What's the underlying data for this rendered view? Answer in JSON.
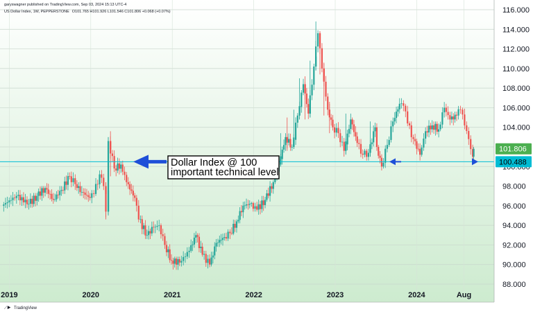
{
  "header": {
    "published": "garyswagner published on TradingView.com, Sep 03, 2024 15:13 UTC-4",
    "symbol": "US Dollar Index, 1W, PEPPERSTONE",
    "ohlc": "O101.765 H101.926 L101.546 C101.806 +0.068 (+0.07%)"
  },
  "footer": {
    "brand": "TradingView"
  },
  "annotation": {
    "line1": "Dollar Index @ 100",
    "line2": "important technical level"
  },
  "colors": {
    "up": "#26a69a",
    "down": "#ef5350",
    "support_line": "#00bcd4",
    "arrow": "#1e4fd8",
    "price_badge": "#4caf50",
    "level_badge": "#00bcd4",
    "gradient_top": "#ffffff",
    "gradient_bottom": "#cdebcf"
  },
  "chart_data": {
    "type": "candlestick",
    "title": "",
    "xlabel": "",
    "ylabel": "",
    "ylim": [
      88,
      116
    ],
    "yticks": [
      88,
      90,
      92,
      94,
      96,
      98,
      100,
      102,
      104,
      106,
      108,
      110,
      112,
      114,
      116
    ],
    "ytick_labels": [
      "88.000",
      "90.000",
      "92.000",
      "94.000",
      "96.000",
      "98.000",
      "100.000",
      "102.000",
      "104.000",
      "106.000",
      "108.000",
      "110.000",
      "112.000",
      "114.000",
      "116.000"
    ],
    "xlim": [
      2018.92,
      2024.78
    ],
    "xticks": [
      2019.0,
      2020.0,
      2021.0,
      2022.0,
      2023.0,
      2024.0,
      2024.58
    ],
    "xtick_labels": [
      "2019",
      "2020",
      "2021",
      "2022",
      "2023",
      "2024",
      "Aug"
    ],
    "grid": true,
    "current_price": 101.806,
    "current_price_label": "101.806",
    "support_level": 100.488,
    "support_level_label": "100.488",
    "candles": [
      [
        2018.92,
        96.0,
        97.4,
        95.2,
        97.0
      ],
      [
        2019.1,
        97.0,
        97.6,
        95.6,
        96.2
      ],
      [
        2019.25,
        96.2,
        97.3,
        95.8,
        97.0
      ],
      [
        2019.35,
        97.0,
        98.0,
        96.4,
        97.8
      ],
      [
        2019.45,
        97.8,
        98.3,
        96.2,
        96.6
      ],
      [
        2019.55,
        96.6,
        98.0,
        96.4,
        97.6
      ],
      [
        2019.65,
        97.6,
        99.4,
        97.2,
        99.0
      ],
      [
        2019.75,
        99.0,
        99.6,
        97.6,
        98.2
      ],
      [
        2019.82,
        98.2,
        98.6,
        97.0,
        97.4
      ],
      [
        2019.9,
        97.4,
        98.4,
        96.4,
        96.8
      ],
      [
        2020.0,
        96.8,
        97.6,
        96.2,
        97.2
      ],
      [
        2020.05,
        97.2,
        99.6,
        97.0,
        99.2
      ],
      [
        2020.12,
        99.2,
        99.8,
        97.6,
        98.0
      ],
      [
        2020.17,
        98.0,
        98.4,
        94.6,
        95.4
      ],
      [
        2020.2,
        95.4,
        103.0,
        95.0,
        102.6
      ],
      [
        2020.23,
        102.6,
        103.6,
        99.0,
        99.8
      ],
      [
        2020.3,
        99.8,
        101.0,
        99.0,
        100.2
      ],
      [
        2020.38,
        100.2,
        100.6,
        98.0,
        98.4
      ],
      [
        2020.45,
        98.4,
        99.0,
        96.4,
        96.8
      ],
      [
        2020.55,
        96.8,
        97.2,
        94.2,
        94.6
      ],
      [
        2020.6,
        94.6,
        95.0,
        92.6,
        93.0
      ],
      [
        2020.7,
        93.0,
        94.4,
        92.4,
        93.8
      ],
      [
        2020.78,
        93.8,
        94.6,
        93.0,
        94.0
      ],
      [
        2020.85,
        94.0,
        94.2,
        91.6,
        92.0
      ],
      [
        2020.92,
        92.0,
        92.4,
        90.0,
        90.4
      ],
      [
        2021.0,
        90.4,
        90.8,
        89.4,
        90.2
      ],
      [
        2021.1,
        90.2,
        91.8,
        89.8,
        91.4
      ],
      [
        2021.22,
        91.4,
        93.4,
        91.2,
        93.0
      ],
      [
        2021.3,
        93.0,
        93.2,
        90.8,
        91.0
      ],
      [
        2021.38,
        91.0,
        91.4,
        89.6,
        90.0
      ],
      [
        2021.47,
        90.0,
        92.6,
        89.8,
        92.2
      ],
      [
        2021.55,
        92.2,
        93.2,
        91.8,
        92.8
      ],
      [
        2021.65,
        92.8,
        93.6,
        92.4,
        93.2
      ],
      [
        2021.72,
        93.2,
        94.6,
        93.0,
        94.4
      ],
      [
        2021.8,
        94.4,
        96.4,
        94.2,
        96.0
      ],
      [
        2021.88,
        96.0,
        96.8,
        95.6,
        96.2
      ],
      [
        2021.96,
        96.2,
        96.4,
        95.4,
        95.6
      ],
      [
        2022.05,
        95.6,
        97.0,
        94.6,
        96.6
      ],
      [
        2022.15,
        96.6,
        98.6,
        96.4,
        98.4
      ],
      [
        2022.25,
        98.4,
        100.6,
        98.2,
        100.2
      ],
      [
        2022.32,
        100.2,
        103.4,
        100.0,
        103.0
      ],
      [
        2022.4,
        103.0,
        105.0,
        101.6,
        102.0
      ],
      [
        2022.48,
        102.0,
        105.8,
        101.8,
        105.2
      ],
      [
        2022.55,
        105.2,
        109.0,
        104.8,
        108.4
      ],
      [
        2022.62,
        108.4,
        109.2,
        104.8,
        105.4
      ],
      [
        2022.68,
        105.4,
        110.8,
        105.0,
        110.2
      ],
      [
        2022.75,
        110.2,
        114.8,
        109.8,
        113.6
      ],
      [
        2022.8,
        113.6,
        113.8,
        109.4,
        110.0
      ],
      [
        2022.85,
        110.0,
        110.6,
        105.2,
        105.8
      ],
      [
        2022.92,
        105.8,
        106.6,
        103.4,
        104.0
      ],
      [
        2022.98,
        104.0,
        104.8,
        102.6,
        103.4
      ],
      [
        2023.05,
        103.4,
        103.8,
        101.0,
        101.6
      ],
      [
        2023.12,
        101.6,
        105.4,
        101.2,
        104.8
      ],
      [
        2023.2,
        104.8,
        105.0,
        102.0,
        102.4
      ],
      [
        2023.28,
        102.4,
        102.8,
        100.8,
        101.2
      ],
      [
        2023.35,
        101.2,
        101.8,
        100.6,
        101.4
      ],
      [
        2023.42,
        101.4,
        104.6,
        101.0,
        104.0
      ],
      [
        2023.5,
        104.0,
        104.6,
        101.6,
        102.0
      ],
      [
        2023.52,
        102.0,
        102.2,
        99.6,
        100.0
      ],
      [
        2023.58,
        100.0,
        102.8,
        99.8,
        102.2
      ],
      [
        2023.65,
        102.2,
        105.0,
        102.0,
        104.6
      ],
      [
        2023.72,
        104.6,
        107.0,
        104.2,
        106.4
      ],
      [
        2023.8,
        106.4,
        107.4,
        105.6,
        106.2
      ],
      [
        2023.85,
        106.2,
        106.4,
        104.0,
        104.4
      ],
      [
        2023.9,
        104.4,
        104.6,
        102.2,
        102.8
      ],
      [
        2023.97,
        102.8,
        103.4,
        100.6,
        101.2
      ],
      [
        2024.05,
        101.2,
        104.0,
        101.0,
        103.6
      ],
      [
        2024.12,
        103.6,
        104.8,
        102.8,
        104.2
      ],
      [
        2024.2,
        104.2,
        104.6,
        102.6,
        103.8
      ],
      [
        2024.28,
        103.8,
        106.6,
        103.6,
        106.0
      ],
      [
        2024.35,
        106.0,
        106.4,
        104.2,
        104.8
      ],
      [
        2024.42,
        104.8,
        105.6,
        104.0,
        105.2
      ],
      [
        2024.5,
        105.2,
        106.2,
        104.8,
        105.8
      ],
      [
        2024.55,
        105.8,
        106.0,
        103.6,
        104.2
      ],
      [
        2024.6,
        104.2,
        104.6,
        102.2,
        102.8
      ],
      [
        2024.65,
        102.8,
        103.4,
        100.6,
        101.0
      ],
      [
        2024.7,
        101.0,
        102.0,
        100.6,
        101.806
      ]
    ]
  }
}
